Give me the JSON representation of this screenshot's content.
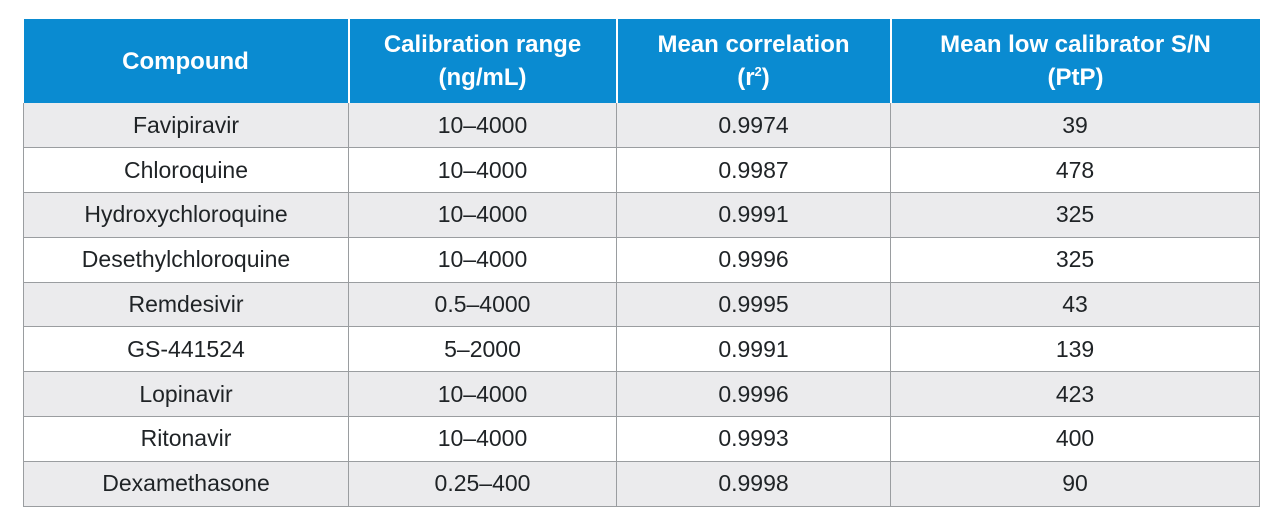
{
  "table": {
    "header": {
      "col1": "Compound",
      "col2_line1": "Calibration range",
      "col2_line2": "(ng/mL)",
      "col3_line1": "Mean correlation",
      "col3_pre": "(r",
      "col3_sup": "2",
      "col3_post": ")",
      "col4_line1": "Mean low calibrator S/N",
      "col4_line2": "(PtP)"
    },
    "rows": [
      {
        "compound": "Favipiravir",
        "range": "10–4000",
        "r2": "0.9974",
        "sn": "39"
      },
      {
        "compound": "Chloroquine",
        "range": "10–4000",
        "r2": "0.9987",
        "sn": "478"
      },
      {
        "compound": "Hydroxychloroquine",
        "range": "10–4000",
        "r2": "0.9991",
        "sn": "325"
      },
      {
        "compound": "Desethylchloroquine",
        "range": "10–4000",
        "r2": "0.9996",
        "sn": "325"
      },
      {
        "compound": "Remdesivir",
        "range": "0.5–4000",
        "r2": "0.9995",
        "sn": "43"
      },
      {
        "compound": "GS-441524",
        "range": "5–2000",
        "r2": "0.9991",
        "sn": "139"
      },
      {
        "compound": "Lopinavir",
        "range": "10–4000",
        "r2": "0.9996",
        "sn": "423"
      },
      {
        "compound": "Ritonavir",
        "range": "10–4000",
        "r2": "0.9993",
        "sn": "400"
      },
      {
        "compound": "Dexamethasone",
        "range": "0.25–400",
        "r2": "0.9998",
        "sn": "90"
      }
    ]
  },
  "colors": {
    "header_bg": "#0a8bd1",
    "stripe_bg": "#ebebed",
    "border": "#9a9da0"
  }
}
